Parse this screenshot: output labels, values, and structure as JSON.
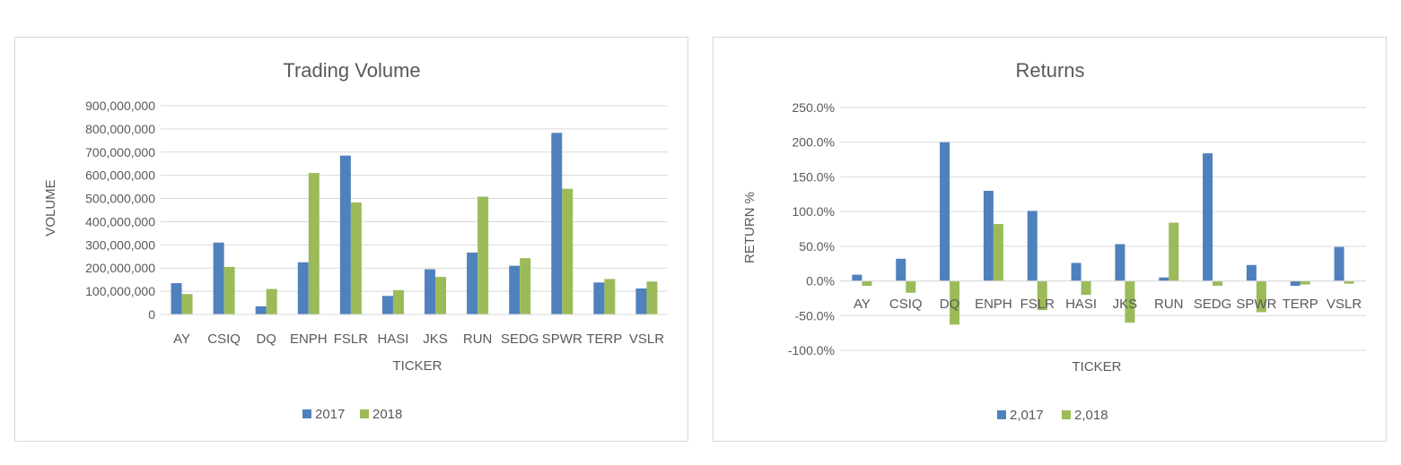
{
  "chart_data": [
    {
      "type": "bar",
      "title": "Trading Volume",
      "xlabel": "TICKER",
      "ylabel": "VOLUME",
      "categories": [
        "AY",
        "CSIQ",
        "DQ",
        "ENPH",
        "FSLR",
        "HASI",
        "JKS",
        "RUN",
        "SEDG",
        "SPWR",
        "TERP",
        "VSLR"
      ],
      "series": [
        {
          "name": "2017",
          "color": "#4f81bd",
          "values": [
            135000000,
            310000000,
            35000000,
            225000000,
            685000000,
            80000000,
            195000000,
            267000000,
            210000000,
            783000000,
            138000000,
            112000000
          ]
        },
        {
          "name": "2018",
          "color": "#9bbb59",
          "values": [
            88000000,
            205000000,
            110000000,
            610000000,
            483000000,
            105000000,
            162000000,
            508000000,
            243000000,
            542000000,
            153000000,
            142000000
          ]
        }
      ],
      "ylim": [
        0,
        900000000
      ],
      "yticks": [
        0,
        100000000,
        200000000,
        300000000,
        400000000,
        500000000,
        600000000,
        700000000,
        800000000,
        900000000
      ],
      "ytick_labels": [
        "0",
        "100,000,000",
        "200,000,000",
        "300,000,000",
        "400,000,000",
        "500,000,000",
        "600,000,000",
        "700,000,000",
        "800,000,000",
        "900,000,000"
      ],
      "grid": true,
      "legend": "bottom"
    },
    {
      "type": "bar",
      "title": "Returns",
      "xlabel": "TICKER",
      "ylabel": "RETURN %",
      "categories": [
        "AY",
        "CSIQ",
        "DQ",
        "ENPH",
        "FSLR",
        "HASI",
        "JKS",
        "RUN",
        "SEDG",
        "SPWR",
        "TERP",
        "VSLR"
      ],
      "series": [
        {
          "name": "2,017",
          "color": "#4f81bd",
          "values": [
            0.09,
            0.32,
            2.0,
            1.3,
            1.01,
            0.26,
            0.53,
            0.05,
            1.84,
            0.23,
            -0.07,
            0.49
          ]
        },
        {
          "name": "2,018",
          "color": "#9bbb59",
          "values": [
            -0.07,
            -0.17,
            -0.63,
            0.82,
            -0.42,
            -0.2,
            -0.6,
            0.84,
            -0.07,
            -0.45,
            -0.05,
            -0.04
          ]
        }
      ],
      "ylim": [
        -1.0,
        2.5
      ],
      "yticks": [
        -1.0,
        -0.5,
        0.0,
        0.5,
        1.0,
        1.5,
        2.0,
        2.5
      ],
      "ytick_labels": [
        "-100.0%",
        "-50.0%",
        "0.0%",
        "50.0%",
        "100.0%",
        "150.0%",
        "200.0%",
        "250.0%"
      ],
      "grid": true,
      "legend": "bottom"
    }
  ]
}
